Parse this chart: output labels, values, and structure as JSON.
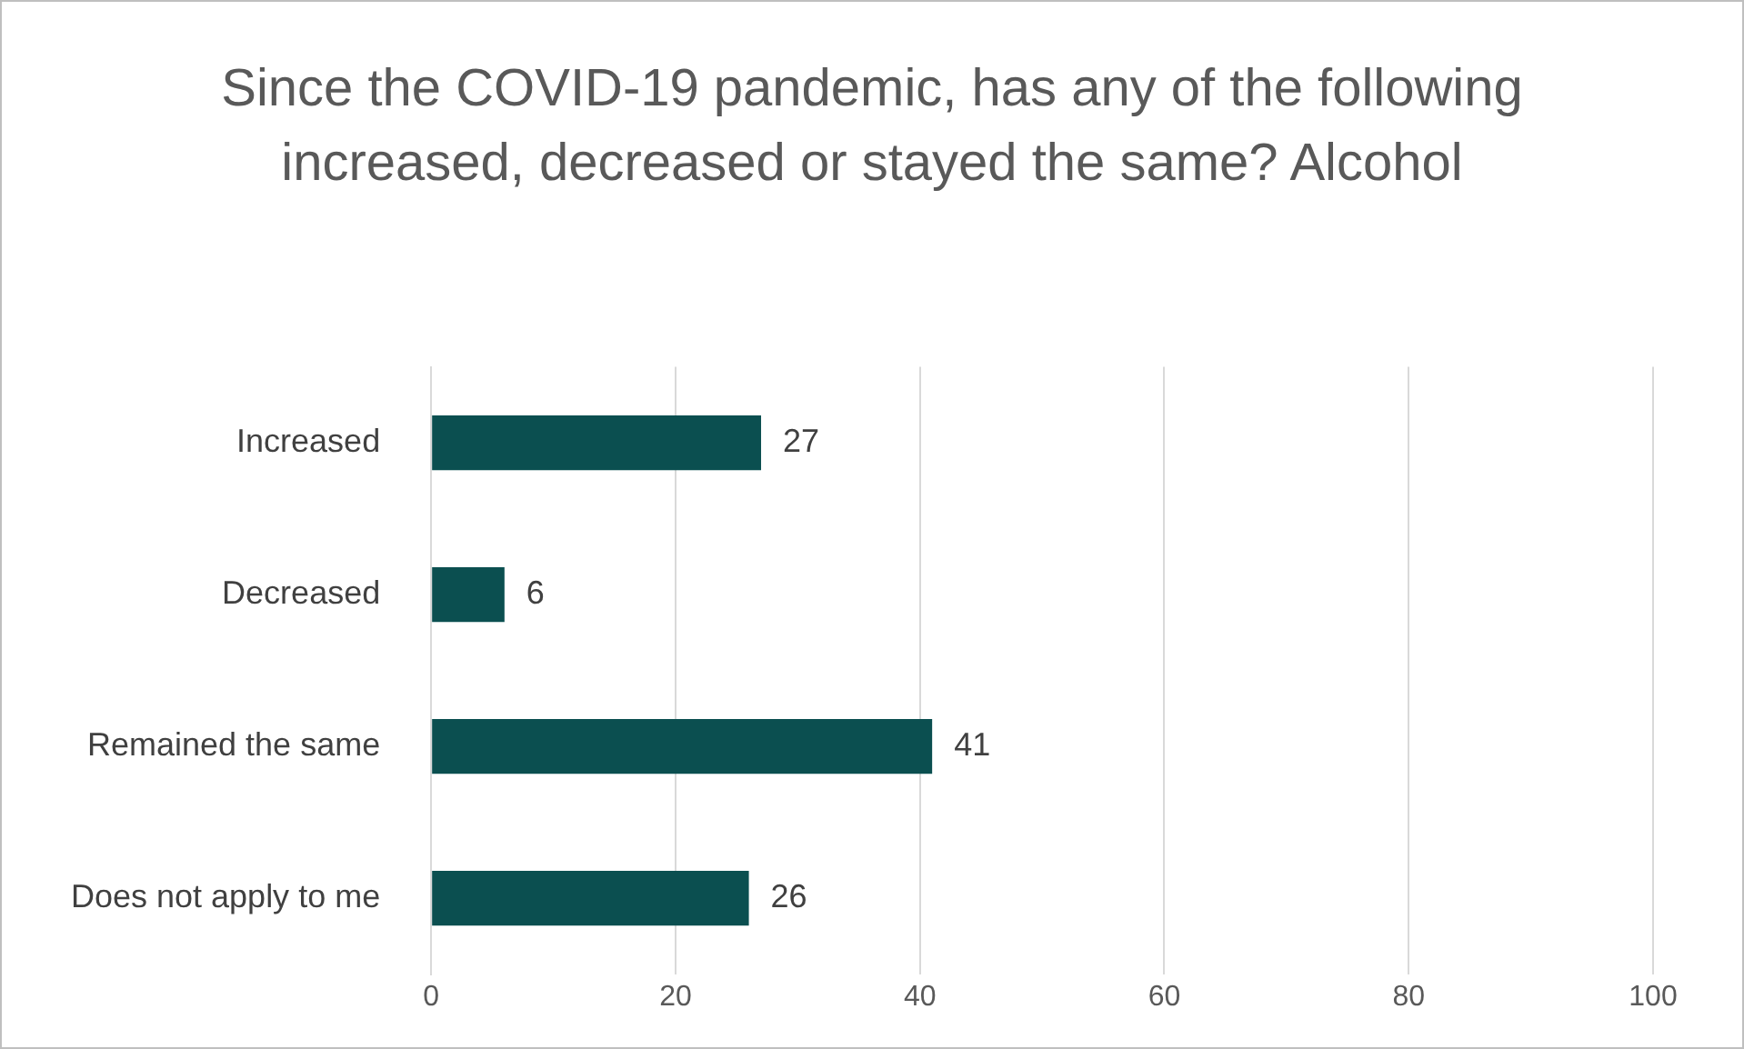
{
  "chart_data": {
    "type": "bar",
    "orientation": "horizontal",
    "title": "Since the COVID-19 pandemic, has any of the following increased, decreased or stayed the same? Alcohol",
    "categories": [
      "Increased",
      "Decreased",
      "Remained the same",
      "Does not apply to me"
    ],
    "values": [
      27,
      6,
      41,
      26
    ],
    "color": "#0b4f50",
    "xlim": [
      0,
      100
    ],
    "xticks": [
      0,
      20,
      40,
      60,
      80,
      100
    ],
    "grid": "x",
    "data_labels": true
  }
}
